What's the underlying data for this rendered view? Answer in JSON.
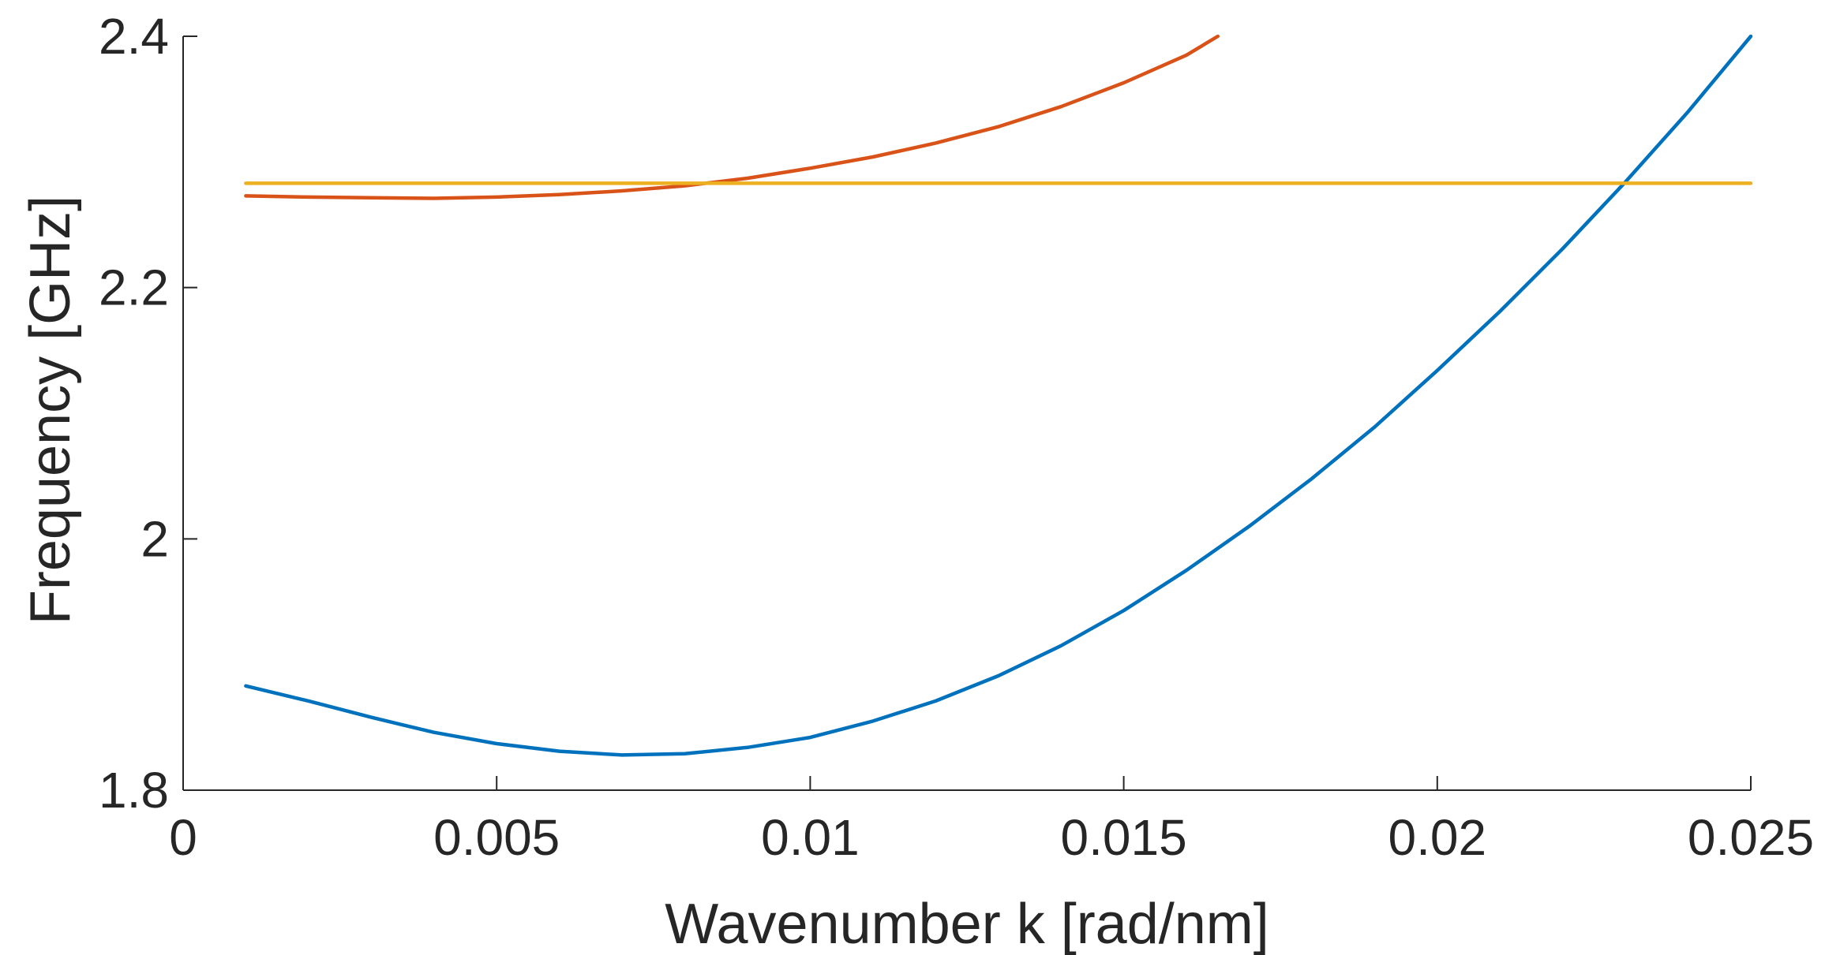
{
  "chart_data": {
    "type": "line",
    "title": "",
    "xlabel": "Wavenumber k [rad/nm]",
    "ylabel": "Frequency [GHz]",
    "xlim": [
      0,
      0.025
    ],
    "ylim": [
      1.8,
      2.4
    ],
    "xticks": [
      0,
      0.005,
      0.01,
      0.015,
      0.02,
      0.025
    ],
    "xtick_labels": [
      "0",
      "0.005",
      "0.01",
      "0.015",
      "0.02",
      "0.025"
    ],
    "yticks": [
      1.8,
      2.0,
      2.2,
      2.4
    ],
    "ytick_labels": [
      "1.8",
      "2",
      "2.2",
      "2.4"
    ],
    "grid": false,
    "legend": "none",
    "series": [
      {
        "color": "#0072BD",
        "x": [
          0.001,
          0.002,
          0.003,
          0.004,
          0.005,
          0.006,
          0.007,
          0.008,
          0.009,
          0.01,
          0.011,
          0.012,
          0.013,
          0.014,
          0.015,
          0.016,
          0.017,
          0.018,
          0.019,
          0.02,
          0.021,
          0.022,
          0.023,
          0.024,
          0.025
        ],
        "y": [
          1.883,
          1.871,
          1.858,
          1.846,
          1.837,
          1.831,
          1.828,
          1.829,
          1.834,
          1.842,
          1.855,
          1.871,
          1.891,
          1.915,
          1.943,
          1.975,
          2.01,
          2.048,
          2.089,
          2.134,
          2.181,
          2.231,
          2.284,
          2.34,
          2.4
        ]
      },
      {
        "color": "#D95319",
        "x": [
          0.001,
          0.002,
          0.003,
          0.004,
          0.005,
          0.006,
          0.007,
          0.008,
          0.009,
          0.01,
          0.011,
          0.012,
          0.013,
          0.014,
          0.015,
          0.016,
          0.0165
        ],
        "y": [
          2.273,
          2.272,
          2.2715,
          2.271,
          2.272,
          2.274,
          2.277,
          2.281,
          2.287,
          2.295,
          2.304,
          2.315,
          2.328,
          2.344,
          2.363,
          2.385,
          2.4
        ]
      },
      {
        "color": "#EDB120",
        "x": [
          0.001,
          0.025
        ],
        "y": [
          2.283,
          2.283
        ]
      }
    ]
  }
}
